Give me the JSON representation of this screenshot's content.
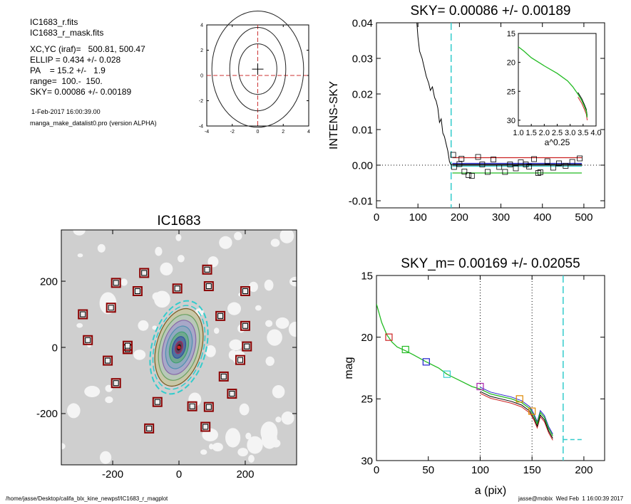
{
  "header": {
    "lines": [
      "IC1683_r.fits",
      "IC1683_r_mask.fits"
    ],
    "params": [
      "XC,YC (iraf)=   500.81, 500.47",
      "ELLIP = 0.434 +/- 0.028",
      "PA    = 15.2 +/-   1.9",
      "range=  100.-  150.",
      "SKY= 0.00086 +/- 0.00189"
    ],
    "date": "1-Feb-2017 16:00:39.00",
    "program": "manga_make_datalist0.pro (version ALPHA)"
  },
  "footer": {
    "left": "/home/jasse/Desktop/califa_blx_kine_newpsf/IC1683_r_magplot",
    "right": "jasse@mobix  Wed Feb  1 16:00:39 2017"
  },
  "colors": {
    "cyan": "#33cccc",
    "red": "#cc2222",
    "green": "#22bb22",
    "blue": "#2222cc",
    "magenta": "#aa22aa",
    "orange": "#dd8800",
    "crosshair": "#cc3333"
  },
  "chart_data": [
    {
      "id": "center-contour",
      "type": "line",
      "title": "",
      "xlim": [
        -4,
        4
      ],
      "ylim": [
        -4,
        4
      ],
      "xticks": [
        -4,
        -2,
        0,
        2,
        4
      ],
      "yticks": [
        -4,
        -2,
        0,
        2,
        4
      ],
      "center": [
        0,
        0.5
      ],
      "contours": [
        {
          "rx": 1.5,
          "ry": 2.0
        },
        {
          "rx": 2.2,
          "ry": 3.3
        },
        {
          "rx": 3.6,
          "ry": 4.6
        }
      ]
    },
    {
      "id": "sky-profile",
      "type": "line",
      "title": "SKY= 0.00086 +/- 0.00189",
      "xlabel": "",
      "ylabel": "INTENS-SKY",
      "xlim": [
        0,
        550
      ],
      "ylim": [
        -0.012,
        0.04
      ],
      "xticks": [
        0,
        100,
        200,
        300,
        400,
        500
      ],
      "yticks": [
        -0.01,
        0.0,
        0.01,
        0.02,
        0.03,
        0.04
      ],
      "ytick_labels": [
        "-0.01",
        "0.00",
        "0.01",
        "0.02",
        "0.03",
        "0.04"
      ],
      "sky_cut_x": 180,
      "profile": [
        [
          96,
          0.042
        ],
        [
          100,
          0.036
        ],
        [
          104,
          0.032
        ],
        [
          110,
          0.03
        ],
        [
          116,
          0.027
        ],
        [
          120,
          0.025
        ],
        [
          126,
          0.023
        ],
        [
          130,
          0.021
        ],
        [
          135,
          0.022
        ],
        [
          140,
          0.019
        ],
        [
          144,
          0.018
        ],
        [
          148,
          0.016
        ],
        [
          152,
          0.012
        ],
        [
          156,
          0.013
        ],
        [
          160,
          0.009
        ],
        [
          164,
          0.008
        ],
        [
          168,
          0.006
        ],
        [
          172,
          0.004
        ],
        [
          176,
          0.001
        ],
        [
          180,
          0.0
        ]
      ],
      "points": [
        [
          185,
          0.0029
        ],
        [
          187,
          -0.0005
        ],
        [
          200,
          0.0003
        ],
        [
          205,
          0.0018
        ],
        [
          212,
          -0.0018
        ],
        [
          222,
          -0.0028
        ],
        [
          230,
          -0.003
        ],
        [
          245,
          0.0023
        ],
        [
          255,
          0.0002
        ],
        [
          268,
          -0.0019
        ],
        [
          282,
          0.0016
        ],
        [
          296,
          -0.0005
        ],
        [
          310,
          -0.0019
        ],
        [
          322,
          0.0002
        ],
        [
          336,
          -0.0009
        ],
        [
          348,
          0.0008
        ],
        [
          360,
          0.0002
        ],
        [
          368,
          -0.0004
        ],
        [
          380,
          0.0017
        ],
        [
          390,
          -0.0022
        ],
        [
          395,
          -0.002
        ],
        [
          412,
          0.0011
        ],
        [
          426,
          -0.0007
        ],
        [
          440,
          0.0005
        ],
        [
          456,
          -0.0002
        ],
        [
          472,
          0.0009
        ],
        [
          490,
          0.0019
        ]
      ],
      "fit_lines": [
        {
          "color": "red",
          "y": 0.0021
        },
        {
          "color": "black",
          "y": 0.0001
        },
        {
          "color": "cyan",
          "y": -0.0003
        },
        {
          "color": "blue",
          "y": 0.0005
        },
        {
          "color": "green",
          "y": -0.0022
        }
      ],
      "inset": {
        "xlabel": "a^0.25",
        "xlim": [
          1.0,
          4.0
        ],
        "ylim": [
          15,
          31
        ],
        "xticks": [
          1.0,
          1.5,
          2.0,
          2.5,
          3.0,
          3.5,
          4.0
        ],
        "xtick_labels": [
          "1.0",
          "1.5",
          "2.0",
          "2.5",
          "3.0",
          "3.5",
          "4.0"
        ],
        "yticks": [
          15,
          20,
          25,
          30
        ],
        "curve": [
          [
            1.0,
            17.3
          ],
          [
            1.2,
            18.0
          ],
          [
            1.5,
            19.2
          ],
          [
            2.0,
            20.6
          ],
          [
            2.5,
            21.9
          ],
          [
            2.9,
            23.2
          ],
          [
            3.1,
            24.2
          ],
          [
            3.3,
            25.5
          ],
          [
            3.45,
            26.6
          ],
          [
            3.55,
            27.6
          ],
          [
            3.62,
            28.4
          ],
          [
            3.66,
            29.5
          ]
        ]
      }
    },
    {
      "id": "galaxy-image",
      "type": "scatter",
      "title": "IC1683",
      "xlim": [
        -355,
        355
      ],
      "ylim": [
        -355,
        355
      ],
      "xticks": [
        -200,
        0,
        200
      ],
      "yticks": [
        -200,
        0,
        200
      ],
      "ellipse": {
        "x": 0,
        "y": 0,
        "a": 120,
        "b": 68,
        "pa": 15.2
      },
      "sky_boxes": [
        [
          -105,
          225
        ],
        [
          85,
          235
        ],
        [
          -190,
          195
        ],
        [
          -125,
          170
        ],
        [
          -5,
          178
        ],
        [
          90,
          185
        ],
        [
          200,
          170
        ],
        [
          -205,
          120
        ],
        [
          -290,
          100
        ],
        [
          125,
          95
        ],
        [
          200,
          65
        ],
        [
          -275,
          22
        ],
        [
          -155,
          -5
        ],
        [
          -155,
          -5
        ],
        [
          -155,
          5
        ],
        [
          205,
          3
        ],
        [
          -215,
          -40
        ],
        [
          185,
          -38
        ],
        [
          135,
          -88
        ],
        [
          -190,
          -108
        ],
        [
          160,
          -140
        ],
        [
          -65,
          -165
        ],
        [
          40,
          -178
        ],
        [
          90,
          -180
        ],
        [
          -90,
          -245
        ],
        [
          80,
          -240
        ]
      ]
    },
    {
      "id": "mag-profile",
      "type": "line",
      "title": "SKY_m=  0.00169 +/- 0.02055",
      "xlabel": "a (pix)",
      "ylabel": "mag",
      "xlim": [
        0,
        220
      ],
      "ylim": [
        30,
        15
      ],
      "xticks": [
        0,
        50,
        100,
        150,
        200
      ],
      "yticks": [
        15,
        20,
        25,
        30
      ],
      "vlines": [
        100,
        150
      ],
      "sky_cut_x": 180,
      "sky_level": 28.3,
      "profile": [
        [
          0,
          17.3
        ],
        [
          5,
          18.8
        ],
        [
          10,
          19.8
        ],
        [
          15,
          20.4
        ],
        [
          20,
          20.8
        ],
        [
          28,
          21.1
        ],
        [
          35,
          21.4
        ],
        [
          48,
          22.0
        ],
        [
          60,
          22.5
        ],
        [
          68,
          23.0
        ],
        [
          80,
          23.5
        ],
        [
          92,
          24.0
        ],
        [
          100,
          24.2
        ],
        [
          110,
          24.6
        ],
        [
          120,
          24.8
        ],
        [
          130,
          25.0
        ],
        [
          140,
          25.3
        ],
        [
          148,
          25.8
        ],
        [
          152,
          26.4
        ],
        [
          155,
          27.0
        ],
        [
          158,
          26.1
        ],
        [
          162,
          26.5
        ],
        [
          166,
          27.4
        ],
        [
          170,
          28.0
        ]
      ],
      "markers": [
        [
          12,
          20.0,
          "red"
        ],
        [
          28,
          21.0,
          "green"
        ],
        [
          48,
          22.0,
          "blue"
        ],
        [
          68,
          23.0,
          "cyan"
        ],
        [
          100,
          24.0,
          "magenta"
        ],
        [
          138,
          25.0,
          "orange"
        ],
        [
          150,
          26.0,
          "orange"
        ]
      ]
    }
  ]
}
